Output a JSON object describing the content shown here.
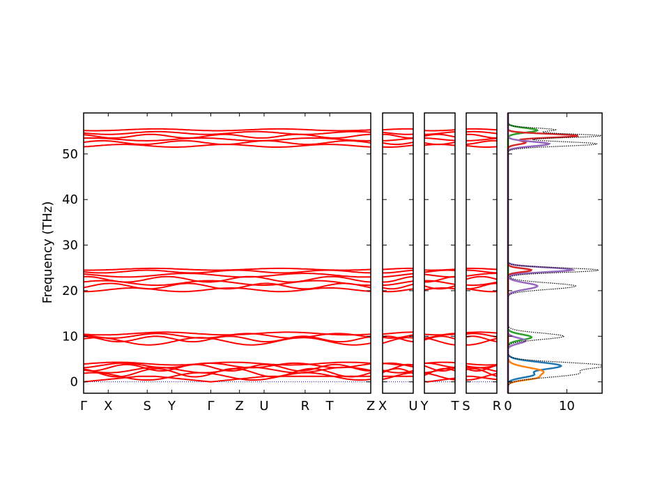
{
  "chart_data": [
    {
      "type": "line",
      "panel": "band-structure-1",
      "ylabel": "Frequency (THz)",
      "ylim": [
        -2.5,
        59
      ],
      "yticks": [
        0,
        10,
        20,
        30,
        40,
        50
      ],
      "xticklabels": [
        "Γ",
        "X",
        "S",
        "Y",
        "Γ",
        "Z",
        "U",
        "R",
        "T",
        "Z"
      ],
      "path_positions": [
        0,
        0.6,
        1.55,
        2.15,
        3.1,
        3.8,
        4.4,
        5.4,
        6.0,
        7.0
      ],
      "series_color": "#ff0000",
      "bands": [
        {
          "center": 0.0,
          "amp": 0.0,
          "period": 1.0
        },
        {
          "center": 1.2,
          "amp": 0.8,
          "period": 2.6
        },
        {
          "center": 2.0,
          "amp": 0.9,
          "period": 1.9
        },
        {
          "center": 2.6,
          "amp": 0.6,
          "period": 2.3
        },
        {
          "center": 3.1,
          "amp": 0.7,
          "period": 1.7
        },
        {
          "center": 3.6,
          "amp": 0.5,
          "period": 2.1
        },
        {
          "center": 4.0,
          "amp": 0.3,
          "period": 2.8
        },
        {
          "center": 8.9,
          "amp": 0.8,
          "period": 2.5
        },
        {
          "center": 9.4,
          "amp": 0.6,
          "period": 1.8
        },
        {
          "center": 10.1,
          "amp": 0.5,
          "period": 2.2
        },
        {
          "center": 10.6,
          "amp": 0.3,
          "period": 3.0
        },
        {
          "center": 20.2,
          "amp": 0.4,
          "period": 2.4
        },
        {
          "center": 21.0,
          "amp": 0.6,
          "period": 1.9
        },
        {
          "center": 21.7,
          "amp": 0.5,
          "period": 2.6
        },
        {
          "center": 22.5,
          "amp": 0.6,
          "period": 2.0
        },
        {
          "center": 23.4,
          "amp": 0.4,
          "period": 2.9
        },
        {
          "center": 24.2,
          "amp": 0.3,
          "period": 2.2
        },
        {
          "center": 24.7,
          "amp": 0.2,
          "period": 3.1
        },
        {
          "center": 51.8,
          "amp": 0.3,
          "period": 2.5
        },
        {
          "center": 52.5,
          "amp": 0.4,
          "period": 2.0
        },
        {
          "center": 53.2,
          "amp": 0.3,
          "period": 2.7
        },
        {
          "center": 53.9,
          "amp": 0.4,
          "period": 1.8
        },
        {
          "center": 54.6,
          "amp": 0.3,
          "period": 2.4
        },
        {
          "center": 55.3,
          "amp": 0.2,
          "period": 3.0
        }
      ]
    },
    {
      "type": "line",
      "panel": "band-structure-2",
      "xticklabels": [
        "X",
        "U"
      ],
      "path_positions": [
        0,
        1
      ],
      "series_color": "#ff0000"
    },
    {
      "type": "line",
      "panel": "band-structure-3",
      "xticklabels": [
        "Y",
        "T"
      ],
      "path_positions": [
        0,
        1
      ],
      "series_color": "#ff0000"
    },
    {
      "type": "line",
      "panel": "band-structure-4",
      "xticklabels": [
        "S",
        "R"
      ],
      "path_positions": [
        0,
        1
      ],
      "series_color": "#ff0000"
    },
    {
      "type": "area",
      "panel": "dos",
      "xlim": [
        0,
        16
      ],
      "xticks": [
        0,
        10
      ],
      "series": [
        {
          "color": "#1f77b4",
          "peaks": [
            {
              "f": 3.5,
              "h": 9.0,
              "w": 0.8
            },
            {
              "f": 1.5,
              "h": 4.0,
              "w": 0.6
            }
          ]
        },
        {
          "color": "#ff7f0e",
          "peaks": [
            {
              "f": 2.2,
              "h": 6.0,
              "w": 0.9
            },
            {
              "f": 0.8,
              "h": 3.0,
              "w": 0.5
            }
          ]
        },
        {
          "color": "#2ca02c",
          "peaks": [
            {
              "f": 55.2,
              "h": 5.0,
              "w": 0.5
            },
            {
              "f": 9.8,
              "h": 4.0,
              "w": 0.6
            }
          ]
        },
        {
          "color": "#d62728",
          "peaks": [
            {
              "f": 54.0,
              "h": 12.0,
              "w": 0.4
            },
            {
              "f": 52.5,
              "h": 3.0,
              "w": 0.4
            },
            {
              "f": 24.5,
              "h": 4.0,
              "w": 0.4
            }
          ]
        },
        {
          "color": "#9467bd",
          "peaks": [
            {
              "f": 24.6,
              "h": 11.0,
              "w": 0.5
            },
            {
              "f": 21.0,
              "h": 5.0,
              "w": 0.7
            },
            {
              "f": 52.2,
              "h": 7.0,
              "w": 0.5
            },
            {
              "f": 9.0,
              "h": 3.0,
              "w": 0.6
            }
          ]
        }
      ],
      "total": {
        "color": "#000000",
        "peaks": [
          {
            "f": 3.6,
            "h": 15.5,
            "w": 0.7
          },
          {
            "f": 1.8,
            "h": 11.5,
            "w": 0.8
          },
          {
            "f": 10.0,
            "h": 9.5,
            "w": 0.7
          },
          {
            "f": 21.0,
            "h": 11.5,
            "w": 0.7
          },
          {
            "f": 24.5,
            "h": 15.5,
            "w": 0.5
          },
          {
            "f": 52.2,
            "h": 15.2,
            "w": 0.5
          },
          {
            "f": 54.0,
            "h": 16.0,
            "w": 0.4
          },
          {
            "f": 55.3,
            "h": 8.0,
            "w": 0.4
          }
        ]
      }
    }
  ]
}
